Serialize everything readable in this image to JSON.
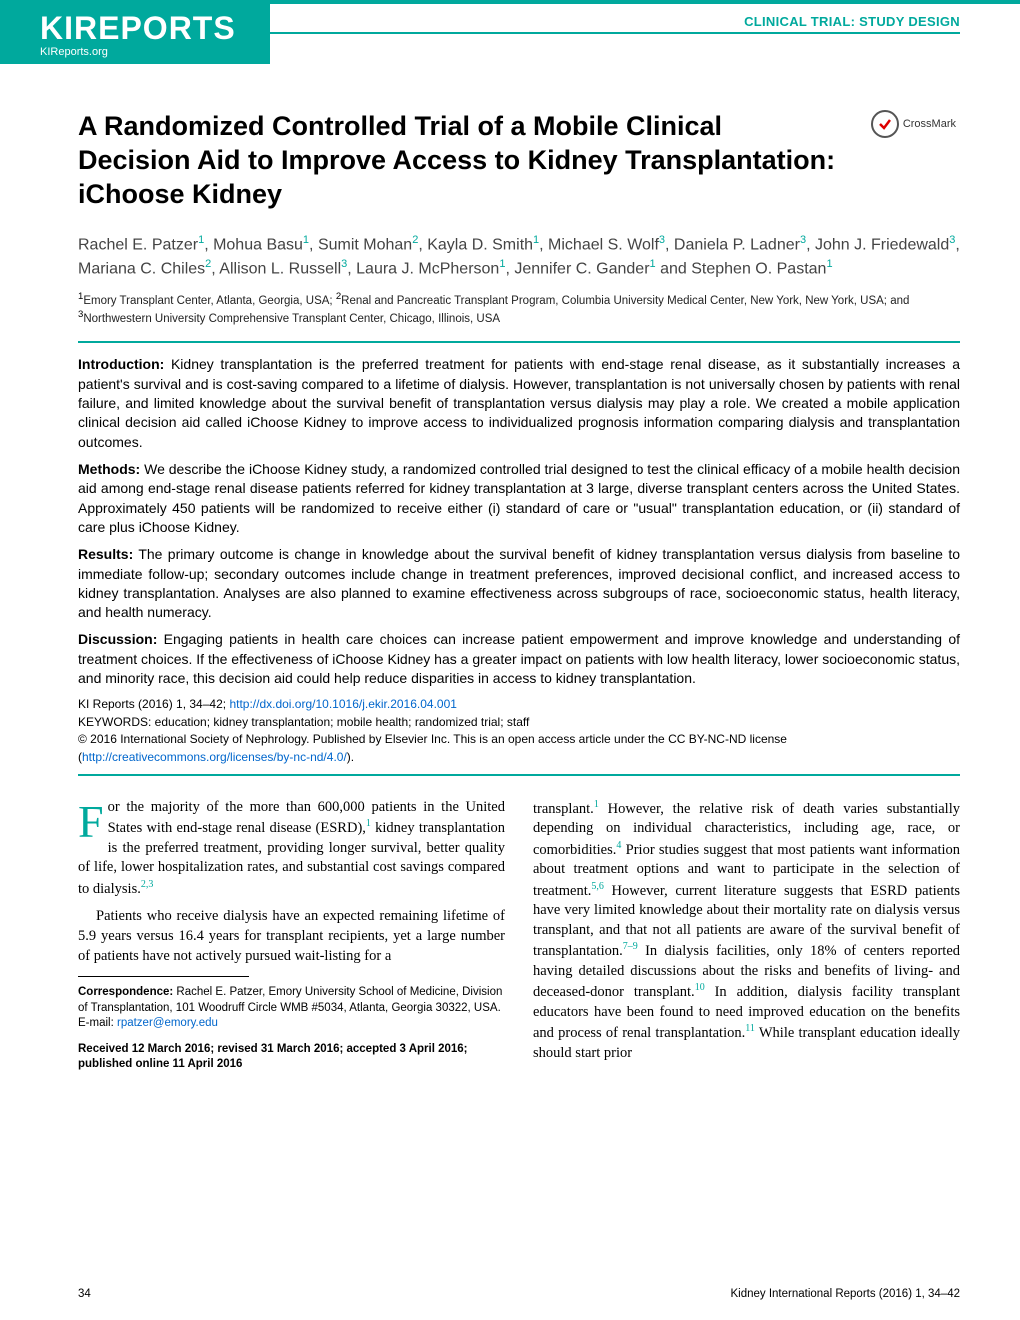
{
  "journal": {
    "logo_main": "KIREPORTS",
    "logo_sub": "KIReports.org",
    "section_label": "CLINICAL TRIAL: STUDY DESIGN",
    "accent_color": "#00a99d",
    "link_color": "#0066cc"
  },
  "crossmark": {
    "label": "CrossMark"
  },
  "article": {
    "title": "A Randomized Controlled Trial of a Mobile Clinical Decision Aid to Improve Access to Kidney Transplantation: iChoose Kidney",
    "authors_html": "Rachel E. Patzer<sup>1</sup>, Mohua Basu<sup>1</sup>, Sumit Mohan<sup>2</sup>, Kayla D. Smith<sup>1</sup>, Michael S. Wolf<sup>3</sup>, Daniela P. Ladner<sup>3</sup>, John J. Friedewald<sup>3</sup>, Mariana C. Chiles<sup>2</sup>, Allison L. Russell<sup>3</sup>, Laura J. McPherson<sup>1</sup>, Jennifer C. Gander<sup>1</sup> and Stephen O. Pastan<sup>1</sup>",
    "affiliations_html": "<sup>1</sup>Emory Transplant Center, Atlanta, Georgia, USA; <sup>2</sup>Renal and Pancreatic Transplant Program, Columbia University Medical Center, New York, New York, USA; and <sup>3</sup>Northwestern University Comprehensive Transplant Center, Chicago, Illinois, USA"
  },
  "abstract": {
    "introduction_label": "Introduction:",
    "introduction": " Kidney transplantation is the preferred treatment for patients with end-stage renal disease, as it substantially increases a patient's survival and is cost-saving compared to a lifetime of dialysis. However, transplantation is not universally chosen by patients with renal failure, and limited knowledge about the survival benefit of transplantation versus dialysis may play a role. We created a mobile application clinical decision aid called iChoose Kidney to improve access to individualized prognosis information comparing dialysis and transplantation outcomes.",
    "methods_label": "Methods:",
    "methods": " We describe the iChoose Kidney study, a randomized controlled trial designed to test the clinical efficacy of a mobile health decision aid among end-stage renal disease patients referred for kidney transplantation at 3 large, diverse transplant centers across the United States. Approximately 450 patients will be randomized to receive either (i) standard of care or \"usual\" transplantation education, or (ii) standard of care plus iChoose Kidney.",
    "results_label": "Results:",
    "results": " The primary outcome is change in knowledge about the survival benefit of kidney transplantation versus dialysis from baseline to immediate follow-up; secondary outcomes include change in treatment preferences, improved decisional conflict, and increased access to kidney transplantation. Analyses are also planned to examine effectiveness across subgroups of race, socioeconomic status, health literacy, and health numeracy.",
    "discussion_label": "Discussion:",
    "discussion": " Engaging patients in health care choices can increase patient empowerment and improve knowledge and understanding of treatment choices. If the effectiveness of iChoose Kidney has a greater impact on patients with low health literacy, lower socioeconomic status, and minority race, this decision aid could help reduce disparities in access to kidney transplantation."
  },
  "meta": {
    "citation": "KI Reports (2016) 1, 34–42; ",
    "doi": "http://dx.doi.org/10.1016/j.ekir.2016.04.001",
    "keywords_label": "KEYWORDS:",
    "keywords": " education; kidney transplantation; mobile health; randomized trial; staff",
    "copyright_a": "© 2016 International Society of Nephrology. Published by Elsevier Inc. This is an open access article under the CC BY-NC-ND license (",
    "license_url": "http://creativecommons.org/licenses/by-nc-nd/4.0/",
    "copyright_b": ")."
  },
  "body": {
    "col1_p1_html": "or the majority of the more than 600,000 patients in the United States with end-stage renal disease (ESRD),<sup>1</sup> kidney transplantation is the preferred treatment, providing longer survival, better quality of life, lower hospitalization rates, and substantial cost savings compared to dialysis.<sup>2,3</sup>",
    "col1_p2_html": "Patients who receive dialysis have an expected remaining lifetime of 5.9 years versus 16.4 years for transplant recipients, yet a large number of patients have not actively pursued wait-listing for a",
    "col2_p1_html": "transplant.<sup>1</sup> However, the relative risk of death varies substantially depending on individual characteristics, including age, race, or comorbidities.<sup>4</sup> Prior studies suggest that most patients want information about treatment options and want to participate in the selection of treatment.<sup>5,6</sup> However, current literature suggests that ESRD patients have very limited knowledge about their mortality rate on dialysis versus transplant, and that not all patients are aware of the survival benefit of transplantation.<sup>7–9</sup> In dialysis facilities, only 18% of centers reported having detailed discussions about the risks and benefits of living- and deceased-donor transplant.<sup>10</sup> In addition, dialysis facility transplant educators have been found to need improved education on the benefits and process of renal transplantation.<sup>11</sup> While transplant education ideally should start prior"
  },
  "correspondence": {
    "label": "Correspondence:",
    "text": " Rachel E. Patzer, Emory University School of Medicine, Division of Transplantation, 101 Woodruff Circle WMB #5034, Atlanta, Georgia 30322, USA. E-mail: ",
    "email": "rpatzer@emory.edu"
  },
  "received": "Received 12 March 2016; revised 31 March 2016; accepted 3 April 2016; published online 11 April 2016",
  "footer": {
    "page": "34",
    "citation": "Kidney International Reports (2016) 1, 34–42"
  }
}
